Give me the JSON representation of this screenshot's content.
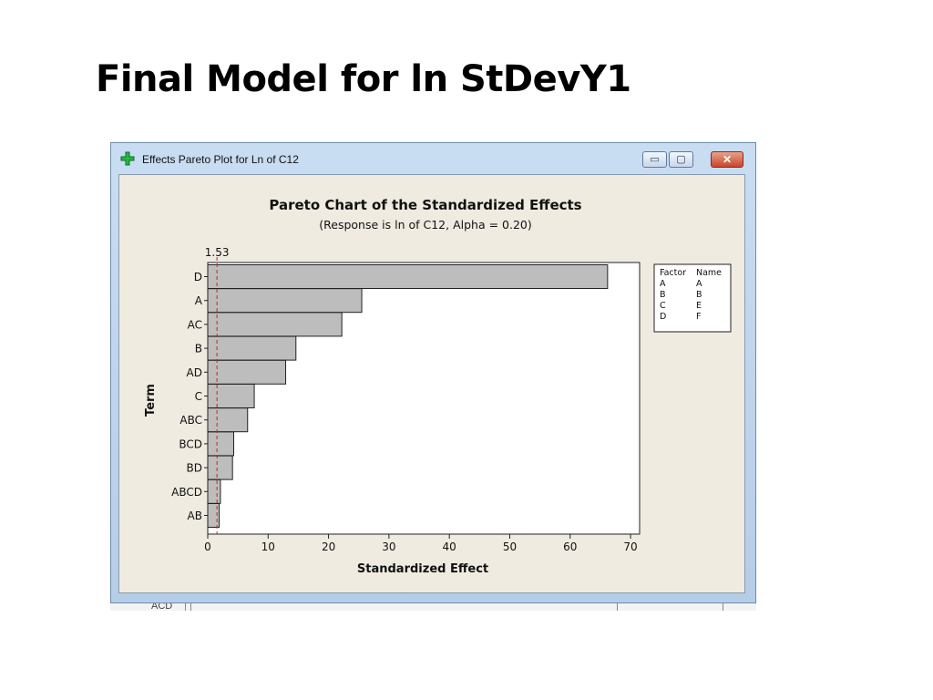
{
  "slide": {
    "title": "Final Model for ln StDevY1"
  },
  "window": {
    "title": "Effects Pareto Plot for Ln of C12",
    "minimize_label": "▭",
    "maximize_label": "▢",
    "close_label": "✕",
    "below_peek_text": "ACD"
  },
  "chart_data": {
    "type": "bar",
    "orientation": "horizontal",
    "title": "Pareto Chart of the Standardized Effects",
    "subtitle": "(Response is ln of C12, Alpha = 0.20)",
    "xlabel": "Standardized Effect",
    "ylabel": "Term",
    "categories": [
      "D",
      "A",
      "AC",
      "B",
      "AD",
      "C",
      "ABC",
      "BCD",
      "BD",
      "ABCD",
      "AB"
    ],
    "values": [
      66.2,
      25.5,
      22.2,
      14.6,
      12.9,
      7.7,
      6.6,
      4.3,
      4.1,
      2.1,
      1.9
    ],
    "xlim": [
      0,
      71.5
    ],
    "xticks": [
      0,
      10,
      20,
      30,
      40,
      50,
      60,
      70
    ],
    "reference_line": {
      "value": 1.53,
      "label": "1.53",
      "color": "#cc2222"
    },
    "bar_color": "#bdbdbd",
    "legend": {
      "position": "right",
      "headers": [
        "Factor",
        "Name"
      ],
      "rows": [
        [
          "A",
          "A"
        ],
        [
          "B",
          "B"
        ],
        [
          "C",
          "E"
        ],
        [
          "D",
          "F"
        ]
      ]
    }
  }
}
